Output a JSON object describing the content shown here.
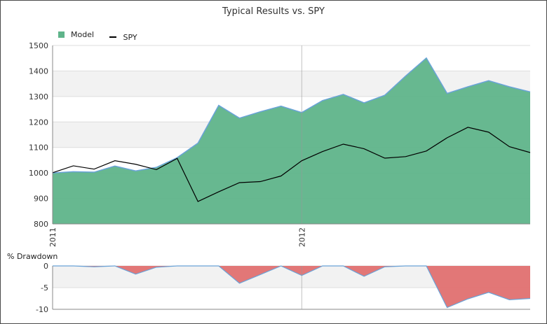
{
  "title": "Typical Results vs. SPY",
  "legend": [
    {
      "label": "Model",
      "color": "#5fb48a",
      "kind": "box"
    },
    {
      "label": "SPY",
      "color": "#000000",
      "kind": "line"
    }
  ],
  "drawdown_label": "% Drawdown",
  "chart_data": [
    {
      "type": "area",
      "title": "Typical Results vs. SPY",
      "xlabel": "",
      "ylabel": "",
      "x_ticks": [
        "2011",
        "2012"
      ],
      "ylim": [
        800,
        1500
      ],
      "y_ticks": [
        800,
        900,
        1000,
        1100,
        1200,
        1300,
        1400,
        1500
      ],
      "grid": "horizontal bands",
      "legend_position": "top-left",
      "x": [
        0,
        1,
        2,
        3,
        4,
        5,
        6,
        7,
        8,
        9,
        10,
        11,
        12,
        13,
        14,
        15,
        16,
        17,
        18,
        19,
        20,
        21,
        22,
        23
      ],
      "series": [
        {
          "name": "Model",
          "color": "#5fb48a",
          "values": [
            1000,
            1005,
            1003,
            1027,
            1008,
            1022,
            1060,
            1117,
            1265,
            1215,
            1240,
            1262,
            1237,
            1284,
            1308,
            1275,
            1305,
            1380,
            1451,
            1312,
            1338,
            1362,
            1338,
            1318
          ]
        },
        {
          "name": "SPY",
          "color": "#000000",
          "values": [
            1001,
            1028,
            1015,
            1048,
            1034,
            1013,
            1057,
            888,
            926,
            962,
            966,
            988,
            1048,
            1084,
            1113,
            1095,
            1058,
            1064,
            1086,
            1138,
            1179,
            1160,
            1103,
            1080
          ]
        }
      ]
    },
    {
      "type": "area",
      "title": "% Drawdown",
      "ylim": [
        -10,
        0
      ],
      "y_ticks": [
        0,
        -5,
        -10
      ],
      "x": [
        0,
        1,
        2,
        3,
        4,
        5,
        6,
        7,
        8,
        9,
        10,
        11,
        12,
        13,
        14,
        15,
        16,
        17,
        18,
        19,
        20,
        21,
        22,
        23
      ],
      "series": [
        {
          "name": "Model",
          "color": "#e07070",
          "values": [
            0,
            0,
            -0.2,
            0,
            -1.9,
            -0.3,
            0,
            0,
            0,
            -4.0,
            -2.0,
            0,
            -2.2,
            0,
            0,
            -2.4,
            -0.2,
            0,
            0,
            -9.6,
            -7.6,
            -6.1,
            -7.8,
            -7.5
          ]
        }
      ]
    }
  ]
}
